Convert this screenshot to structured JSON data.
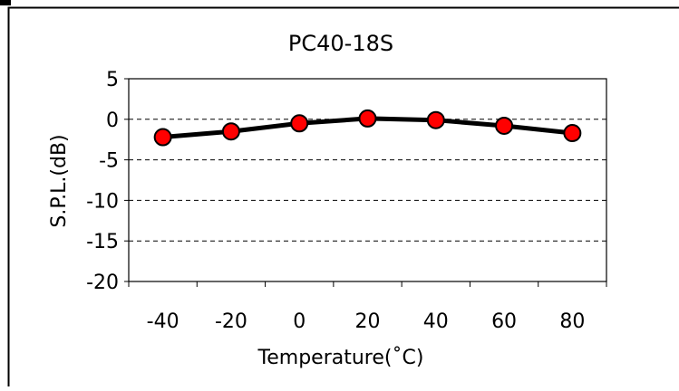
{
  "chart_data": {
    "type": "line",
    "title": "PC40-18S",
    "xlabel": "Temperature(˚C)",
    "ylabel": "S.P.L.(dB)",
    "x": [
      -40,
      -20,
      0,
      20,
      40,
      60,
      80
    ],
    "categories": [
      "-40",
      "-20",
      "0",
      "20",
      "40",
      "60",
      "80"
    ],
    "yticks": [
      "5",
      "0",
      "-5",
      "-10",
      "-15",
      "-20"
    ],
    "ylim": [
      -20,
      5
    ],
    "series": [
      {
        "values": [
          -2.2,
          -1.5,
          -0.5,
          0.1,
          -0.1,
          -0.8,
          -1.7
        ]
      }
    ],
    "grid": "horizontal dashed at y = 0, -5, -10, -15",
    "legend": "none",
    "colors": {
      "line": "#000000",
      "marker_fill": "#ff0000",
      "marker_stroke": "#000000"
    }
  }
}
